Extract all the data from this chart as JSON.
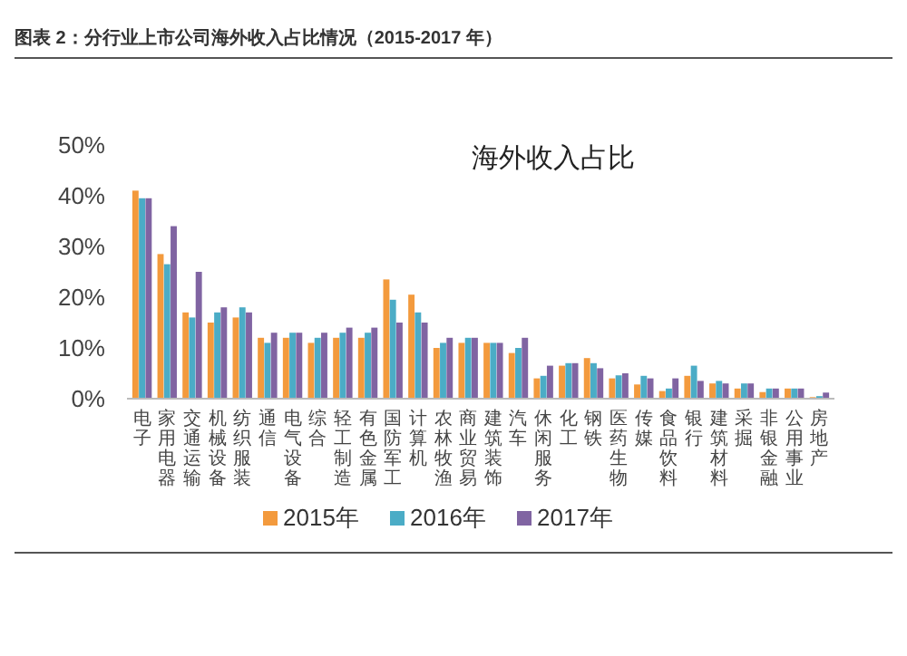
{
  "chart_data": {
    "type": "bar",
    "title": "图表 2：分行业上市公司海外收入占比情况（2015-2017 年）",
    "subtitle": "海外收入占比",
    "categories": [
      "电子",
      "家用电器",
      "交通运输",
      "机械设备",
      "纺织服装",
      "通信",
      "电气设备",
      "综合",
      "轻工制造",
      "有色金属",
      "国防军工",
      "计算机",
      "农林牧渔",
      "商业贸易",
      "建筑装饰",
      "汽车",
      "休闲服务",
      "化工",
      "钢铁",
      "医药生物",
      "传媒",
      "食品饮料",
      "银行",
      "建筑材料",
      "采掘",
      "非银金融",
      "公用事业",
      "房地产"
    ],
    "series": [
      {
        "name": "2015年",
        "color": "#f39a3d",
        "values": [
          41,
          28.5,
          17,
          15,
          16,
          12,
          12,
          11,
          12,
          12,
          23.5,
          20.5,
          10,
          11,
          11,
          9,
          4,
          6.5,
          8,
          4,
          2.8,
          1.5,
          4.5,
          3,
          2,
          1.3,
          2,
          0.3
        ]
      },
      {
        "name": "2016年",
        "color": "#4bacc6",
        "values": [
          39.5,
          26.5,
          16,
          17,
          18,
          11,
          13,
          12,
          13,
          13,
          19.5,
          17,
          11,
          12,
          11,
          10,
          4.5,
          7,
          7,
          4.6,
          4.5,
          2,
          6.5,
          3.5,
          3,
          2,
          2,
          0.5
        ]
      },
      {
        "name": "2017年",
        "color": "#8064a2",
        "values": [
          39.5,
          34,
          25,
          18,
          17,
          13,
          13,
          13,
          14,
          14,
          15,
          15,
          12,
          12,
          11,
          12,
          6.5,
          7,
          6,
          5,
          4,
          4,
          3.5,
          3,
          3,
          2,
          2,
          1.2
        ]
      }
    ],
    "ylim": [
      0,
      50
    ],
    "yticks": [
      {
        "value": 0,
        "label": "0%"
      },
      {
        "value": 10,
        "label": "10%"
      },
      {
        "value": 20,
        "label": "20%"
      },
      {
        "value": 30,
        "label": "30%"
      },
      {
        "value": 40,
        "label": "40%"
      },
      {
        "value": 50,
        "label": "50%"
      }
    ],
    "grid": false,
    "legend": "bottom"
  }
}
